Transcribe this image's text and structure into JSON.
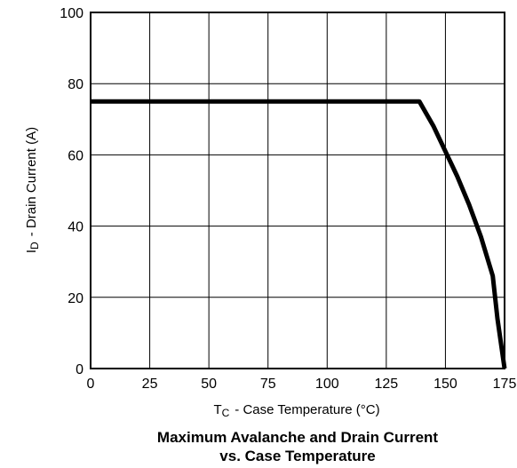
{
  "chart_data": {
    "type": "line",
    "title_line1": "Maximum Avalanche and Drain Current",
    "title_line2": "vs. Case Temperature",
    "xlabel_sub": "C",
    "xlabel_rest": "Case Temperature (°C)",
    "ylabel_rest": "Drain Current (A)",
    "xlim": [
      0,
      175
    ],
    "ylim": [
      0,
      100
    ],
    "x_ticks": [
      0,
      25,
      50,
      75,
      100,
      125,
      150,
      175
    ],
    "y_ticks": [
      0,
      20,
      40,
      60,
      80,
      100
    ],
    "grid": true,
    "series": [
      {
        "x": [
          0,
          139,
          145,
          150,
          155,
          160,
          165,
          170,
          172,
          175
        ],
        "y": [
          75,
          75,
          68,
          61,
          54,
          46,
          37,
          26,
          14,
          0
        ]
      }
    ]
  }
}
